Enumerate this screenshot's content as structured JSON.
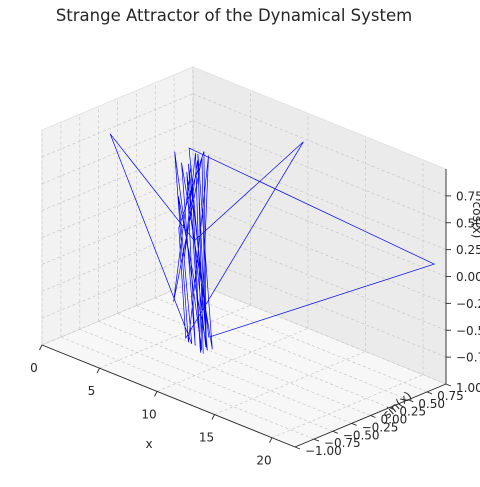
{
  "chart_data": {
    "type": "line",
    "projection": "3d",
    "title": "Strange Attractor of the Dynamical System",
    "xlabel": "x",
    "ylabel": "sin(x)",
    "zlabel": "cos(x)",
    "xlim": [
      0,
      22
    ],
    "ylim": [
      -1.0,
      1.0
    ],
    "zlim": [
      -1.0,
      1.0
    ],
    "x_ticks": [
      "0",
      "5",
      "10",
      "15",
      "20"
    ],
    "y_ticks": [
      "−1.00",
      "−0.75",
      "−0.50",
      "−0.25",
      "0.00",
      "0.25",
      "0.50",
      "0.75",
      "1.00"
    ],
    "z_ticks": [
      "−0.75",
      "−0.50",
      "−0.25",
      "0.00",
      "0.25",
      "0.50",
      "0.75"
    ],
    "grid": true,
    "color": "#0000ff",
    "series": [
      {
        "x": [
          8.5,
          8.0,
          8.6,
          21.3,
          8.2,
          8.8,
          7.6,
          8.1,
          3.3,
          8.0,
          11.9,
          7.9,
          7.3,
          8.3,
          8.9,
          8.4,
          7.9,
          8.1,
          8.3,
          7.6,
          8.0,
          8.7,
          8.4,
          8.1,
          7.5,
          8.4,
          8.6,
          8.0,
          8.2,
          7.8,
          8.9,
          8.3,
          8.5
        ],
        "y": [
          -0.2,
          -0.28,
          -0.1,
          0.95,
          -0.3,
          -0.15,
          -0.35,
          -0.25,
          -0.6,
          -0.2,
          0.65,
          -0.3,
          -0.3,
          -0.12,
          -0.18,
          -0.22,
          -0.32,
          -0.2,
          -0.15,
          -0.4,
          -0.28,
          -0.12,
          -0.18,
          -0.26,
          -0.4,
          -0.16,
          -0.14,
          -0.3,
          -0.22,
          -0.34,
          -0.1,
          -0.2,
          -0.16
        ],
        "z": [
          -0.9,
          0.82,
          -0.82,
          0.1,
          0.98,
          -0.92,
          0.52,
          -0.86,
          0.99,
          0.08,
          0.92,
          -0.8,
          0.2,
          0.9,
          -0.88,
          0.85,
          -0.05,
          0.9,
          -0.94,
          0.95,
          -0.84,
          0.88,
          -0.95,
          0.8,
          -0.45,
          0.86,
          -0.9,
          0.75,
          -0.88,
          0.84,
          -0.92,
          0.9,
          -0.96
        ]
      }
    ]
  }
}
